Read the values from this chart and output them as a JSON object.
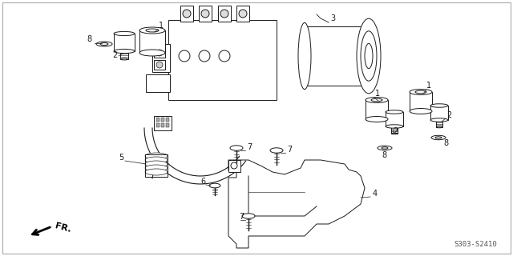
{
  "bg_color": "#ffffff",
  "line_color": "#1a1a1a",
  "text_color": "#1a1a1a",
  "part_number": "S303-S2410",
  "fig_width": 6.4,
  "fig_height": 3.2,
  "dpi": 100
}
